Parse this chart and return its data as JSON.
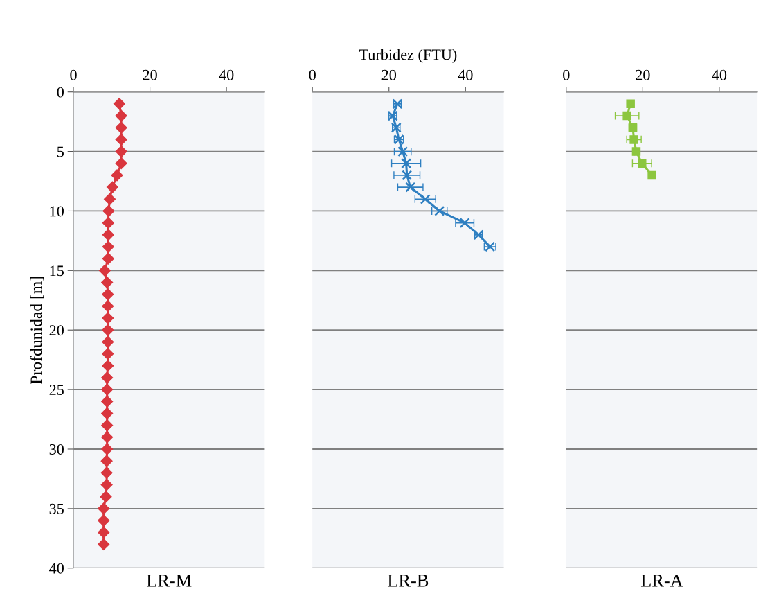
{
  "chart_data": [
    {
      "type": "line",
      "orientation": "horizontal",
      "xlabel": "LR-M",
      "ylabel": "Profdunidad [m]",
      "x": [
        1,
        2,
        3,
        4,
        5,
        6,
        7,
        8,
        9,
        10,
        11,
        12,
        13,
        14,
        15,
        16,
        17,
        18,
        19,
        20,
        21,
        22,
        23,
        24,
        25,
        26,
        27,
        28,
        29,
        30,
        31,
        32,
        33,
        34,
        35,
        36,
        37,
        38
      ],
      "series": [
        {
          "color": "#d9363e",
          "values": [
            12.0,
            12.5,
            12.5,
            12.5,
            12.5,
            12.5,
            11.4,
            10.2,
            9.5,
            9.2,
            9.1,
            9.1,
            9.1,
            9.1,
            8.2,
            8.8,
            9.0,
            9.0,
            9.0,
            9.0,
            9.0,
            9.0,
            9.0,
            8.8,
            8.8,
            8.8,
            8.8,
            8.8,
            8.8,
            8.8,
            8.7,
            8.7,
            8.7,
            8.5,
            7.9,
            7.9,
            7.9,
            7.9
          ]
        }
      ],
      "xlim": [
        0,
        50
      ],
      "xticks": [
        0,
        20,
        40
      ],
      "ylim": [
        40,
        0
      ],
      "yticks": [
        0,
        5,
        10,
        15,
        20,
        25,
        30,
        35,
        40
      ],
      "grid": "y",
      "marker": "diamond",
      "line_style": "solid"
    },
    {
      "type": "line",
      "orientation": "horizontal",
      "title": "Turbidez (FTU)",
      "xlabel": "LR-B",
      "x": [
        1,
        2,
        3,
        4,
        5,
        6,
        7,
        8,
        9,
        10,
        11,
        12,
        13
      ],
      "series": [
        {
          "color": "#2e7fc1",
          "values": [
            22.2,
            21.0,
            21.9,
            22.6,
            23.6,
            24.5,
            24.7,
            25.6,
            29.5,
            33.2,
            39.8,
            43.4,
            46.4
          ],
          "errors": [
            1.0,
            1.0,
            1.0,
            1.2,
            2.2,
            3.8,
            3.4,
            3.3,
            2.7,
            2.0,
            2.4,
            1.0,
            1.5
          ]
        }
      ],
      "xlim": [
        0,
        50
      ],
      "xticks": [
        0,
        20,
        40
      ],
      "ylim": [
        40,
        0
      ],
      "yticks": [
        0,
        5,
        10,
        15,
        20,
        25,
        30,
        35,
        40
      ],
      "tick_labels": "x",
      "grid": "y",
      "marker": "cross",
      "line_style": "solid"
    },
    {
      "type": "line",
      "orientation": "horizontal",
      "xlabel": "LR-A",
      "x": [
        1,
        2,
        3,
        4,
        5,
        6,
        7
      ],
      "series": [
        {
          "color": "#8cc63f",
          "values": [
            16.8,
            15.9,
            17.4,
            17.7,
            18.3,
            19.8,
            22.4
          ],
          "errors": [
            0.5,
            3.1,
            1.0,
            1.9,
            0.5,
            2.5,
            0.5
          ]
        }
      ],
      "xlim": [
        0,
        50
      ],
      "xticks": [
        0,
        20,
        40
      ],
      "ylim": [
        40,
        0
      ],
      "yticks": [
        0,
        5,
        10,
        15,
        20,
        25,
        30,
        35,
        40
      ],
      "tick_labels": "x",
      "grid": "y",
      "marker": "square",
      "line_style": "solid"
    }
  ]
}
